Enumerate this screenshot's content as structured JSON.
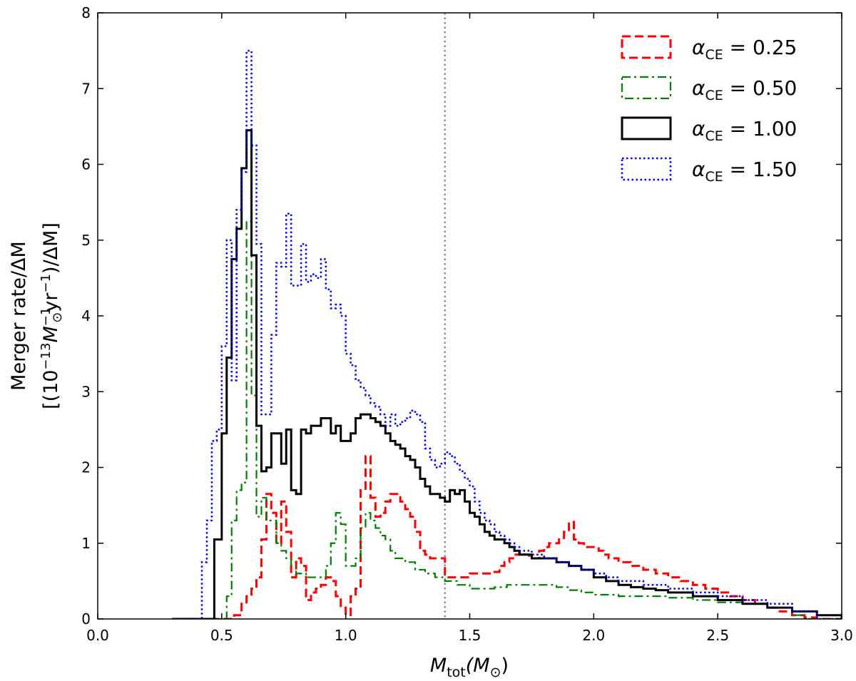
{
  "chart_data": {
    "type": "line",
    "style": "step histogram",
    "xlabel": {
      "main": "M",
      "sub": "tot",
      "rest": "(M",
      "sun": "⊙",
      "close": ")"
    },
    "ylabel": {
      "line1": "Merger rate/ΔM",
      "line2_a": "[(10",
      "line2_exp1": "−13",
      "line2_b": "M",
      "line2_sun": "⊙",
      "line2_exp2": "−1",
      "line2_c": "yr",
      "line2_exp3": "−1",
      "line2_d": ")/ΔM]"
    },
    "xlim": [
      0.0,
      3.0
    ],
    "ylim": [
      0,
      8
    ],
    "xticks": [
      "0.0",
      "0.5",
      "1.0",
      "1.5",
      "2.0",
      "2.5",
      "3.0"
    ],
    "yticks": [
      "0",
      "1",
      "2",
      "3",
      "4",
      "5",
      "6",
      "7",
      "8"
    ],
    "vline": {
      "x": 1.4,
      "color": "#808080",
      "style": "dotted"
    },
    "grid": false,
    "legend_position": "top-right",
    "legend_alpha_symbol": "α",
    "legend_subscript": "CE",
    "series": [
      {
        "name": "α_CE = 0.25",
        "value_label": "0.25",
        "color": "#ff0000",
        "dash": "dashed",
        "width": 3,
        "x": [
          0.3,
          0.55,
          0.58,
          0.6,
          0.62,
          0.64,
          0.66,
          0.68,
          0.7,
          0.72,
          0.74,
          0.76,
          0.78,
          0.8,
          0.82,
          0.84,
          0.86,
          0.88,
          0.9,
          0.92,
          0.94,
          0.96,
          0.98,
          1.0,
          1.02,
          1.04,
          1.06,
          1.08,
          1.1,
          1.12,
          1.14,
          1.16,
          1.18,
          1.2,
          1.22,
          1.24,
          1.26,
          1.28,
          1.3,
          1.32,
          1.34,
          1.36,
          1.38,
          1.4,
          1.45,
          1.5,
          1.55,
          1.6,
          1.62,
          1.64,
          1.66,
          1.68,
          1.7,
          1.72,
          1.74,
          1.76,
          1.78,
          1.8,
          1.82,
          1.84,
          1.86,
          1.88,
          1.9,
          1.92,
          1.94,
          1.96,
          1.98,
          2.0,
          2.02,
          2.04,
          2.06,
          2.1,
          2.15,
          2.2,
          2.25,
          2.3,
          2.35,
          2.4,
          2.45,
          2.5,
          2.55,
          2.6,
          2.65,
          2.7,
          2.75,
          2.8,
          2.85,
          2.9,
          3.0
        ],
        "y": [
          0.0,
          0.05,
          0.2,
          0.3,
          0.4,
          0.55,
          1.05,
          1.65,
          1.4,
          1.0,
          1.55,
          1.15,
          0.55,
          0.8,
          0.7,
          0.25,
          0.35,
          0.4,
          0.45,
          0.55,
          0.5,
          0.3,
          0.15,
          0.05,
          0.3,
          0.4,
          1.7,
          2.15,
          1.6,
          1.35,
          1.4,
          1.55,
          1.65,
          1.65,
          1.55,
          1.45,
          1.35,
          1.15,
          0.9,
          0.85,
          0.8,
          0.8,
          0.8,
          0.55,
          0.55,
          0.6,
          0.6,
          0.62,
          0.7,
          0.75,
          0.8,
          0.85,
          0.88,
          0.85,
          0.8,
          0.8,
          0.9,
          0.95,
          1.0,
          1.0,
          1.05,
          1.15,
          1.28,
          1.05,
          1.0,
          0.95,
          0.95,
          0.95,
          0.9,
          0.85,
          0.8,
          0.75,
          0.7,
          0.65,
          0.6,
          0.55,
          0.5,
          0.45,
          0.4,
          0.35,
          0.3,
          0.25,
          0.2,
          0.15,
          0.1,
          0.05,
          0.02,
          0.0,
          0.0
        ]
      },
      {
        "name": "α_CE = 0.50",
        "value_label": "0.50",
        "color": "#008000",
        "dash": "dashdot",
        "width": 2.2,
        "x": [
          0.3,
          0.52,
          0.54,
          0.56,
          0.58,
          0.6,
          0.62,
          0.64,
          0.66,
          0.68,
          0.7,
          0.72,
          0.74,
          0.76,
          0.78,
          0.8,
          0.84,
          0.88,
          0.92,
          0.94,
          0.96,
          0.98,
          1.0,
          1.02,
          1.04,
          1.06,
          1.08,
          1.1,
          1.12,
          1.14,
          1.16,
          1.18,
          1.2,
          1.24,
          1.28,
          1.32,
          1.36,
          1.4,
          1.45,
          1.5,
          1.55,
          1.6,
          1.65,
          1.7,
          1.75,
          1.8,
          1.85,
          1.9,
          1.95,
          2.0,
          2.1,
          2.2,
          2.3,
          2.4,
          2.5,
          2.6,
          2.7,
          2.8,
          2.85,
          3.0
        ],
        "y": [
          0.0,
          0.3,
          1.3,
          1.7,
          1.8,
          5.25,
          2.95,
          1.35,
          1.6,
          1.3,
          1.3,
          1.0,
          0.9,
          0.8,
          0.7,
          0.6,
          0.55,
          0.55,
          0.7,
          1.0,
          1.4,
          1.25,
          0.7,
          0.7,
          0.8,
          1.2,
          1.4,
          1.3,
          1.2,
          1.1,
          1.05,
          0.9,
          0.8,
          0.75,
          0.65,
          0.6,
          0.55,
          0.5,
          0.45,
          0.4,
          0.4,
          0.42,
          0.45,
          0.45,
          0.45,
          0.45,
          0.42,
          0.38,
          0.35,
          0.32,
          0.3,
          0.3,
          0.28,
          0.25,
          0.22,
          0.2,
          0.15,
          0.05,
          0.0,
          0.0
        ]
      },
      {
        "name": "α_CE = 1.00",
        "value_label": "1.00",
        "color": "#000000",
        "dash": "solid",
        "width": 3,
        "x": [
          0.3,
          0.47,
          0.5,
          0.52,
          0.54,
          0.56,
          0.58,
          0.6,
          0.62,
          0.64,
          0.66,
          0.68,
          0.7,
          0.72,
          0.74,
          0.76,
          0.78,
          0.8,
          0.82,
          0.84,
          0.86,
          0.88,
          0.9,
          0.92,
          0.94,
          0.96,
          0.98,
          1.0,
          1.02,
          1.04,
          1.06,
          1.08,
          1.1,
          1.12,
          1.14,
          1.16,
          1.18,
          1.2,
          1.22,
          1.24,
          1.26,
          1.28,
          1.3,
          1.32,
          1.34,
          1.36,
          1.38,
          1.4,
          1.42,
          1.44,
          1.46,
          1.48,
          1.5,
          1.52,
          1.54,
          1.56,
          1.58,
          1.6,
          1.62,
          1.64,
          1.66,
          1.68,
          1.7,
          1.75,
          1.8,
          1.85,
          1.9,
          1.95,
          2.0,
          2.05,
          2.1,
          2.15,
          2.2,
          2.25,
          2.3,
          2.4,
          2.5,
          2.6,
          2.7,
          2.8,
          2.9,
          3.0
        ],
        "y": [
          0.0,
          1.05,
          2.45,
          3.45,
          4.75,
          5.15,
          5.95,
          6.45,
          4.8,
          2.55,
          1.95,
          2.0,
          2.45,
          2.45,
          2.05,
          2.5,
          1.7,
          1.65,
          2.5,
          2.45,
          2.55,
          2.55,
          2.65,
          2.65,
          2.45,
          2.55,
          2.35,
          2.35,
          2.45,
          2.65,
          2.7,
          2.7,
          2.65,
          2.6,
          2.55,
          2.45,
          2.35,
          2.3,
          2.25,
          2.15,
          2.1,
          2.0,
          1.85,
          1.75,
          1.65,
          1.65,
          1.6,
          1.55,
          1.7,
          1.65,
          1.7,
          1.55,
          1.4,
          1.35,
          1.25,
          1.15,
          1.1,
          1.05,
          1.05,
          1.0,
          0.95,
          0.9,
          0.85,
          0.8,
          0.8,
          0.75,
          0.7,
          0.65,
          0.55,
          0.5,
          0.45,
          0.42,
          0.4,
          0.38,
          0.35,
          0.3,
          0.25,
          0.2,
          0.15,
          0.1,
          0.05,
          0.0
        ]
      },
      {
        "name": "α_CE = 1.50",
        "value_label": "1.50",
        "color": "#0000ff",
        "dash": "dotted",
        "width": 2.5,
        "x": [
          0.3,
          0.42,
          0.44,
          0.46,
          0.48,
          0.5,
          0.52,
          0.54,
          0.56,
          0.58,
          0.6,
          0.62,
          0.64,
          0.66,
          0.68,
          0.7,
          0.72,
          0.74,
          0.76,
          0.78,
          0.8,
          0.82,
          0.84,
          0.86,
          0.88,
          0.9,
          0.92,
          0.94,
          0.96,
          0.98,
          1.0,
          1.02,
          1.04,
          1.06,
          1.08,
          1.1,
          1.12,
          1.14,
          1.16,
          1.18,
          1.2,
          1.22,
          1.24,
          1.26,
          1.28,
          1.3,
          1.32,
          1.34,
          1.36,
          1.38,
          1.4,
          1.42,
          1.44,
          1.46,
          1.48,
          1.5,
          1.52,
          1.54,
          1.56,
          1.58,
          1.6,
          1.62,
          1.64,
          1.66,
          1.68,
          1.7,
          1.75,
          1.8,
          1.85,
          1.9,
          1.95,
          2.0,
          2.05,
          2.1,
          2.2,
          2.3,
          2.4,
          2.5,
          2.6,
          2.7,
          2.8,
          2.9,
          3.0
        ],
        "y": [
          0.0,
          0.75,
          1.3,
          2.35,
          2.5,
          3.6,
          5.0,
          3.15,
          5.4,
          5.9,
          7.5,
          6.25,
          4.95,
          2.7,
          2.7,
          3.75,
          4.7,
          4.65,
          5.35,
          4.4,
          4.4,
          4.95,
          4.45,
          4.55,
          4.5,
          4.75,
          4.35,
          4.1,
          4.15,
          4.0,
          3.5,
          3.35,
          3.15,
          3.05,
          2.95,
          2.85,
          2.8,
          2.7,
          2.55,
          2.7,
          2.55,
          2.6,
          2.65,
          2.75,
          2.7,
          2.6,
          2.25,
          2.1,
          2.0,
          2.05,
          2.2,
          2.15,
          2.05,
          1.95,
          1.85,
          1.75,
          1.55,
          1.4,
          1.3,
          1.25,
          1.15,
          1.1,
          1.05,
          1.0,
          0.95,
          0.9,
          0.85,
          0.8,
          0.75,
          0.7,
          0.65,
          0.6,
          0.55,
          0.5,
          0.45,
          0.4,
          0.35,
          0.3,
          0.25,
          0.2,
          0.1,
          0.0,
          0.0
        ]
      }
    ]
  }
}
